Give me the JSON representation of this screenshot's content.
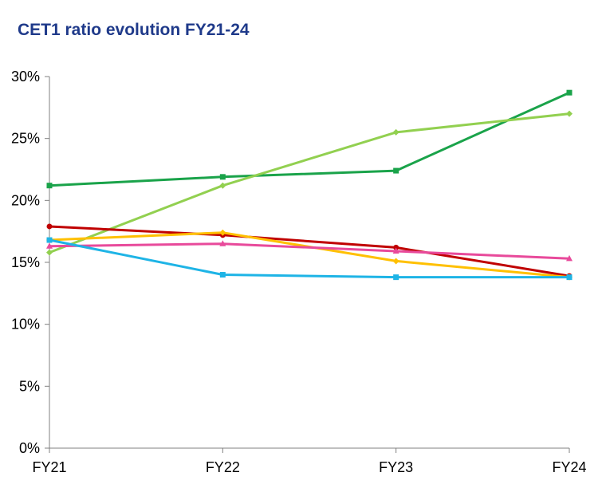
{
  "chart_data": {
    "type": "line",
    "title": "CET1 ratio evolution FY21-24",
    "xlabel": "",
    "ylabel": "",
    "categories": [
      "FY21",
      "FY22",
      "FY23",
      "FY24"
    ],
    "ylim": [
      0,
      30
    ],
    "yticks": [
      0,
      5,
      10,
      15,
      20,
      25,
      30
    ],
    "ytick_labels": [
      "0%",
      "5%",
      "10%",
      "15%",
      "20%",
      "25%",
      "30%"
    ],
    "grid": false,
    "legend": "none",
    "series": [
      {
        "color": "#1aa34a",
        "marker": "square",
        "values": [
          21.2,
          21.9,
          22.4,
          28.7
        ]
      },
      {
        "color": "#92d050",
        "marker": "diamond",
        "values": [
          15.8,
          21.2,
          25.5,
          27.0
        ]
      },
      {
        "color": "#c00000",
        "marker": "circle",
        "values": [
          17.9,
          17.2,
          16.2,
          13.9
        ]
      },
      {
        "color": "#ffc000",
        "marker": "diamond",
        "values": [
          16.8,
          17.4,
          15.1,
          13.8
        ]
      },
      {
        "color": "#e84a9b",
        "marker": "triangle",
        "values": [
          16.3,
          16.5,
          15.9,
          15.3
        ]
      },
      {
        "color": "#1eb4e6",
        "marker": "square",
        "values": [
          16.8,
          14.0,
          13.8,
          13.8
        ]
      }
    ]
  }
}
